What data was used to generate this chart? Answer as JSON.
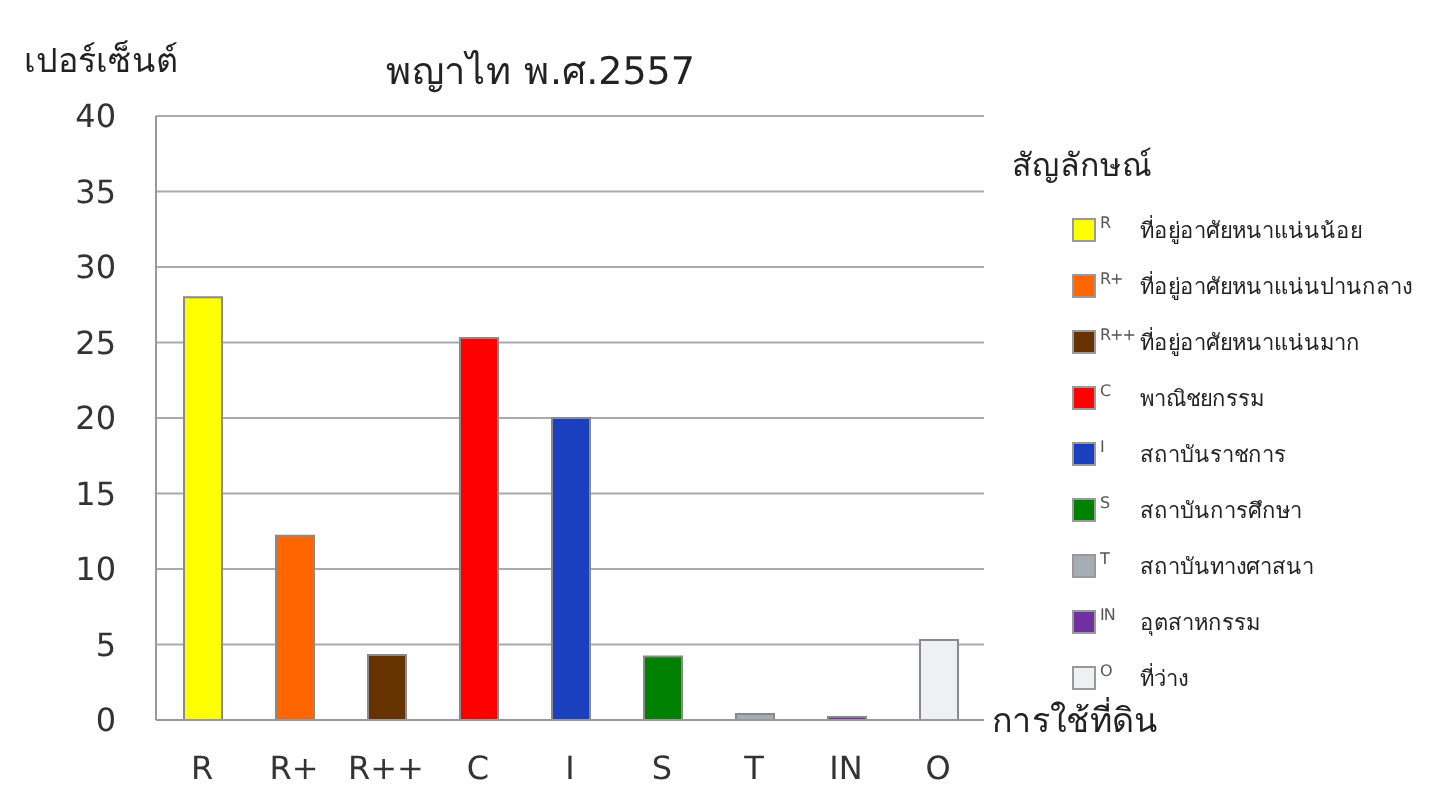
{
  "chart_data": {
    "type": "bar",
    "title": "พญาไท พ.ศ.2557",
    "ylabel": "เปอร์เซ็นต์",
    "xlabel": "การใช้ที่ดิน",
    "legend_title": "สัญลักษณ์",
    "categories": [
      "R",
      "R+",
      "R++",
      "C",
      "I",
      "S",
      "T",
      "IN",
      "O"
    ],
    "stacked": true,
    "series": [
      {
        "name": "ที่อยู่อาศัยหนาแน่นน้อย",
        "color": "#ffff00",
        "values": [
          28,
          null,
          null,
          null,
          null,
          null,
          null,
          null,
          null
        ]
      },
      {
        "name": "ที่อยู่อาศัยหนาแน่นปานกลาง",
        "color": "#ff6600",
        "values": [
          null,
          12.2,
          null,
          null,
          null,
          null,
          null,
          null,
          null
        ]
      },
      {
        "name": "ที่อยู่อาศัยหนาแน่นมาก",
        "color": "#663300",
        "values": [
          null,
          null,
          4.3,
          null,
          null,
          null,
          null,
          null,
          null
        ]
      },
      {
        "name": "พาณิชยกรรม",
        "color": "#ff0000",
        "values": [
          null,
          null,
          null,
          25.3,
          null,
          null,
          null,
          null,
          null
        ]
      },
      {
        "name": "สถาบันราชการ",
        "color": "#1a3fbf",
        "values": [
          null,
          null,
          null,
          null,
          20,
          null,
          null,
          null,
          null
        ]
      },
      {
        "name": "สถาบันการศึกษา",
        "color": "#008000",
        "values": [
          null,
          null,
          null,
          null,
          null,
          4.2,
          null,
          null,
          null
        ]
      },
      {
        "name": "สถาบันทางศาสนา",
        "color": "#a6abb5",
        "values": [
          null,
          null,
          null,
          null,
          null,
          null,
          0.4,
          null,
          null
        ]
      },
      {
        "name": "อุตสาหกรรม",
        "color": "#7030a0",
        "values": [
          null,
          null,
          null,
          null,
          null,
          null,
          null,
          0.2,
          null
        ]
      },
      {
        "name": "ที่ว่าง",
        "color": "#eef0f4",
        "values": [
          null,
          null,
          null,
          null,
          null,
          null,
          null,
          null,
          5.3
        ]
      }
    ],
    "ylim": [
      0,
      40
    ],
    "yticks": [
      0,
      5,
      10,
      15,
      20,
      25,
      30,
      35,
      40
    ],
    "grid": "y",
    "legend": "right"
  }
}
